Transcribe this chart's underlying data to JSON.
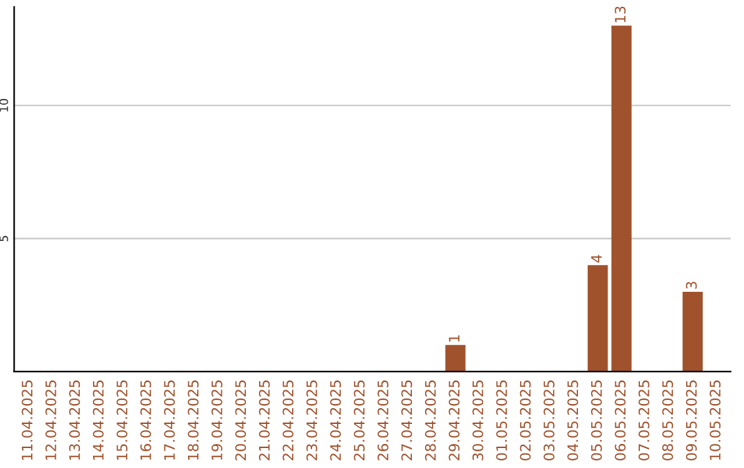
{
  "chart_data": {
    "type": "bar",
    "categories": [
      "11.04.2025",
      "12.04.2025",
      "13.04.2025",
      "14.04.2025",
      "15.04.2025",
      "16.04.2025",
      "17.04.2025",
      "18.04.2025",
      "19.04.2025",
      "20.04.2025",
      "21.04.2025",
      "22.04.2025",
      "23.04.2025",
      "24.04.2025",
      "25.04.2025",
      "26.04.2025",
      "27.04.2025",
      "28.04.2025",
      "29.04.2025",
      "30.04.2025",
      "01.05.2025",
      "02.05.2025",
      "03.05.2025",
      "04.05.2025",
      "05.05.2025",
      "06.05.2025",
      "07.05.2025",
      "08.05.2025",
      "09.05.2025",
      "10.05.2025"
    ],
    "values": [
      0,
      0,
      0,
      0,
      0,
      0,
      0,
      0,
      0,
      0,
      0,
      0,
      0,
      0,
      0,
      0,
      0,
      0,
      1,
      0,
      0,
      0,
      0,
      0,
      4,
      13,
      0,
      0,
      3,
      0
    ],
    "value_labels": [
      null,
      null,
      null,
      null,
      null,
      null,
      null,
      null,
      null,
      null,
      null,
      null,
      null,
      null,
      null,
      null,
      null,
      null,
      "1",
      null,
      null,
      null,
      null,
      null,
      "4",
      "13",
      null,
      null,
      "3",
      null
    ],
    "color": "#a0522d",
    "ylim": [
      0,
      13.7
    ],
    "yticks": [
      5,
      10
    ],
    "grid": "y",
    "legend": false
  }
}
